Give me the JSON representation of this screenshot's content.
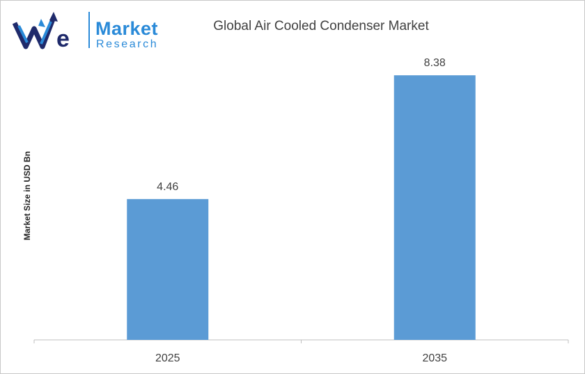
{
  "brand": {
    "mark": "We",
    "line1": "Market",
    "line2": "Research"
  },
  "colors": {
    "bar": "#5b9bd5",
    "axis": "#bfbfbf",
    "brand_blue": "#2a8ad8",
    "brand_navy": "#1f2a6b"
  },
  "chart_data": {
    "type": "bar",
    "title": "Global Air Cooled Condenser Market",
    "xlabel": "",
    "ylabel": "Market Size in USD Bn",
    "categories": [
      "2025",
      "2035"
    ],
    "values": [
      4.46,
      8.38
    ],
    "data_labels": [
      "4.46",
      "8.38"
    ],
    "ylim": [
      0,
      9
    ],
    "grid": false,
    "legend": "none"
  }
}
